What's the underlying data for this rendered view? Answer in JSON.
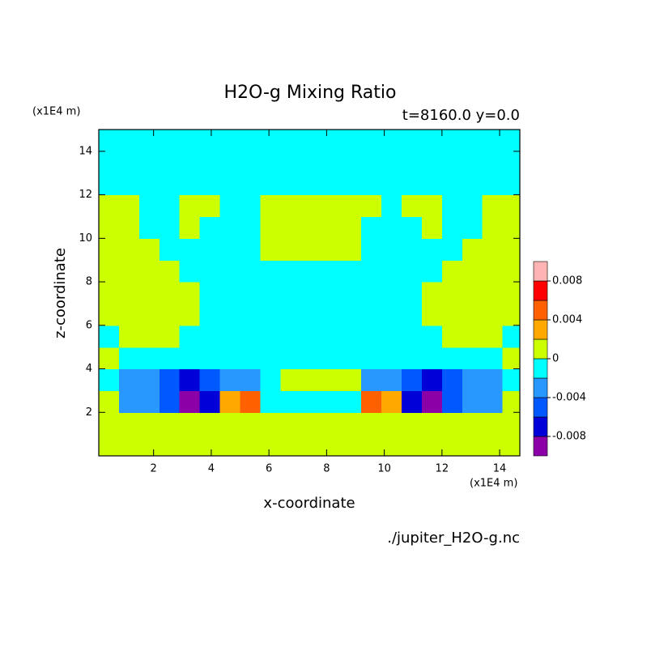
{
  "chart_data": {
    "type": "contour",
    "title": "H2O-g Mixing Ratio",
    "subtitle": "t=8160.0 y=0.0",
    "x_label": "x-coordinate",
    "y_label": "z-coordinate",
    "x_unit": "(x1E4 m)",
    "y_unit": "(x1E4 m)",
    "source": "./jupiter_H2O-g.nc",
    "xlim": [
      0.1,
      14.7
    ],
    "ylim": [
      0,
      15
    ],
    "xticks": [
      2,
      4,
      6,
      8,
      10,
      12,
      14
    ],
    "yticks": [
      2,
      4,
      6,
      8,
      10,
      12,
      14
    ],
    "levels": [
      -0.01,
      -0.008,
      -0.006,
      -0.004,
      -0.002,
      0,
      0.002,
      0.004,
      0.006,
      0.008,
      0.01
    ],
    "colors": [
      "#8c00a8",
      "#0000d8",
      "#0058ff",
      "#2898ff",
      "#00ffff",
      "#ccff00",
      "#ffa800",
      "#ff6000",
      "#ff0000",
      "#ffb4b4"
    ],
    "cticks": [
      -0.008,
      -0.004,
      0,
      0.004,
      0.008
    ],
    "x": [
      0.45,
      1.15,
      1.85,
      2.55,
      3.25,
      3.95,
      4.65,
      5.35,
      6.05,
      6.75,
      7.45,
      8.15,
      8.85,
      9.55,
      10.25,
      10.95,
      11.65,
      12.35,
      13.05,
      13.75,
      14.45
    ],
    "y": [
      0.5,
      1.5,
      2.5,
      3.5,
      4.5,
      5.5,
      6.5,
      7.5,
      8.5,
      9.5,
      10.5,
      11.5,
      12.5,
      13.5,
      14.5
    ],
    "z": [
      [
        0.001,
        0.001,
        0.001,
        0.001,
        0.001,
        0.001,
        0.001,
        0.001,
        0.001,
        0.001,
        0.001,
        0.001,
        0.001,
        0.001,
        0.001,
        0.001,
        0.001,
        0.001,
        0.001,
        0.001,
        0.001
      ],
      [
        0.001,
        0.001,
        0.001,
        0.001,
        0.001,
        0.001,
        0.001,
        0.001,
        0.001,
        0.001,
        0.001,
        0.001,
        0.001,
        0.001,
        0.001,
        0.001,
        0.001,
        0.001,
        0.001,
        0.001,
        0.001
      ],
      [
        0.001,
        -0.003,
        -0.003,
        -0.005,
        -0.009,
        -0.007,
        0.003,
        0.005,
        -0.001,
        -0.001,
        -0.001,
        -0.001,
        -0.001,
        0.005,
        0.003,
        -0.007,
        -0.009,
        -0.005,
        -0.003,
        -0.003,
        0.001
      ],
      [
        -0.001,
        -0.003,
        -0.003,
        -0.005,
        -0.007,
        -0.005,
        -0.003,
        -0.003,
        -0.001,
        0.001,
        0.001,
        0.001,
        0.001,
        -0.003,
        -0.003,
        -0.005,
        -0.007,
        -0.005,
        -0.003,
        -0.003,
        -0.001
      ],
      [
        0.001,
        -0.001,
        -0.001,
        -0.001,
        -0.001,
        -0.001,
        -0.001,
        -0.001,
        -0.001,
        -0.001,
        -0.001,
        -0.001,
        -0.001,
        -0.001,
        -0.001,
        -0.001,
        -0.001,
        -0.001,
        -0.001,
        -0.001,
        0.001
      ],
      [
        -0.001,
        0.001,
        0.001,
        0.001,
        -0.001,
        -0.001,
        -0.001,
        -0.001,
        -0.001,
        -0.001,
        -0.001,
        -0.001,
        -0.001,
        -0.001,
        -0.001,
        -0.001,
        -0.001,
        0.001,
        0.001,
        0.001,
        -0.001
      ],
      [
        0.001,
        0.001,
        0.001,
        0.001,
        0.001,
        -0.001,
        -0.001,
        -0.001,
        -0.001,
        -0.001,
        -0.001,
        -0.001,
        -0.001,
        -0.001,
        -0.001,
        -0.001,
        0.001,
        0.001,
        0.001,
        0.001,
        0.001
      ],
      [
        0.001,
        0.001,
        0.001,
        0.001,
        0.001,
        -0.001,
        -0.001,
        -0.001,
        -0.001,
        -0.001,
        -0.001,
        -0.001,
        -0.001,
        -0.001,
        -0.001,
        -0.001,
        0.001,
        0.001,
        0.001,
        0.001,
        0.001
      ],
      [
        0.001,
        0.001,
        0.001,
        0.001,
        -0.001,
        -0.001,
        -0.001,
        -0.001,
        -0.001,
        -0.001,
        -0.001,
        -0.001,
        -0.001,
        -0.001,
        -0.001,
        -0.001,
        -0.001,
        0.001,
        0.001,
        0.001,
        0.001
      ],
      [
        0.001,
        0.001,
        0.001,
        -0.001,
        -0.001,
        -0.001,
        -0.001,
        -0.001,
        0.001,
        0.001,
        0.001,
        0.001,
        0.001,
        -0.001,
        -0.001,
        -0.001,
        -0.001,
        -0.001,
        0.001,
        0.001,
        0.001
      ],
      [
        0.001,
        0.001,
        -0.001,
        -0.001,
        0.001,
        -0.001,
        -0.001,
        -0.001,
        0.001,
        0.001,
        0.001,
        0.001,
        0.001,
        -0.001,
        -0.001,
        -0.001,
        0.001,
        -0.001,
        -0.001,
        0.001,
        0.001
      ],
      [
        0.001,
        0.001,
        -0.001,
        -0.001,
        0.001,
        0.001,
        -0.001,
        -0.001,
        0.001,
        0.001,
        0.001,
        0.001,
        0.001,
        0.001,
        -0.001,
        0.001,
        0.001,
        -0.001,
        -0.001,
        0.001,
        0.001
      ],
      [
        -0.001,
        -0.001,
        -0.001,
        -0.001,
        -0.001,
        -0.001,
        -0.001,
        -0.001,
        -0.001,
        -0.001,
        -0.001,
        -0.001,
        -0.001,
        -0.001,
        -0.001,
        -0.001,
        -0.001,
        -0.001,
        -0.001,
        -0.001,
        -0.001
      ],
      [
        -0.001,
        -0.001,
        -0.001,
        -0.001,
        -0.001,
        -0.001,
        -0.001,
        -0.001,
        -0.001,
        -0.001,
        -0.001,
        -0.001,
        -0.001,
        -0.001,
        -0.001,
        -0.001,
        -0.001,
        -0.001,
        -0.001,
        -0.001,
        -0.001
      ],
      [
        -0.001,
        -0.001,
        -0.001,
        -0.001,
        -0.001,
        -0.001,
        -0.001,
        -0.001,
        -0.001,
        -0.001,
        -0.001,
        -0.001,
        -0.001,
        -0.001,
        -0.001,
        -0.001,
        -0.001,
        -0.001,
        -0.001,
        -0.001,
        -0.001
      ]
    ]
  }
}
